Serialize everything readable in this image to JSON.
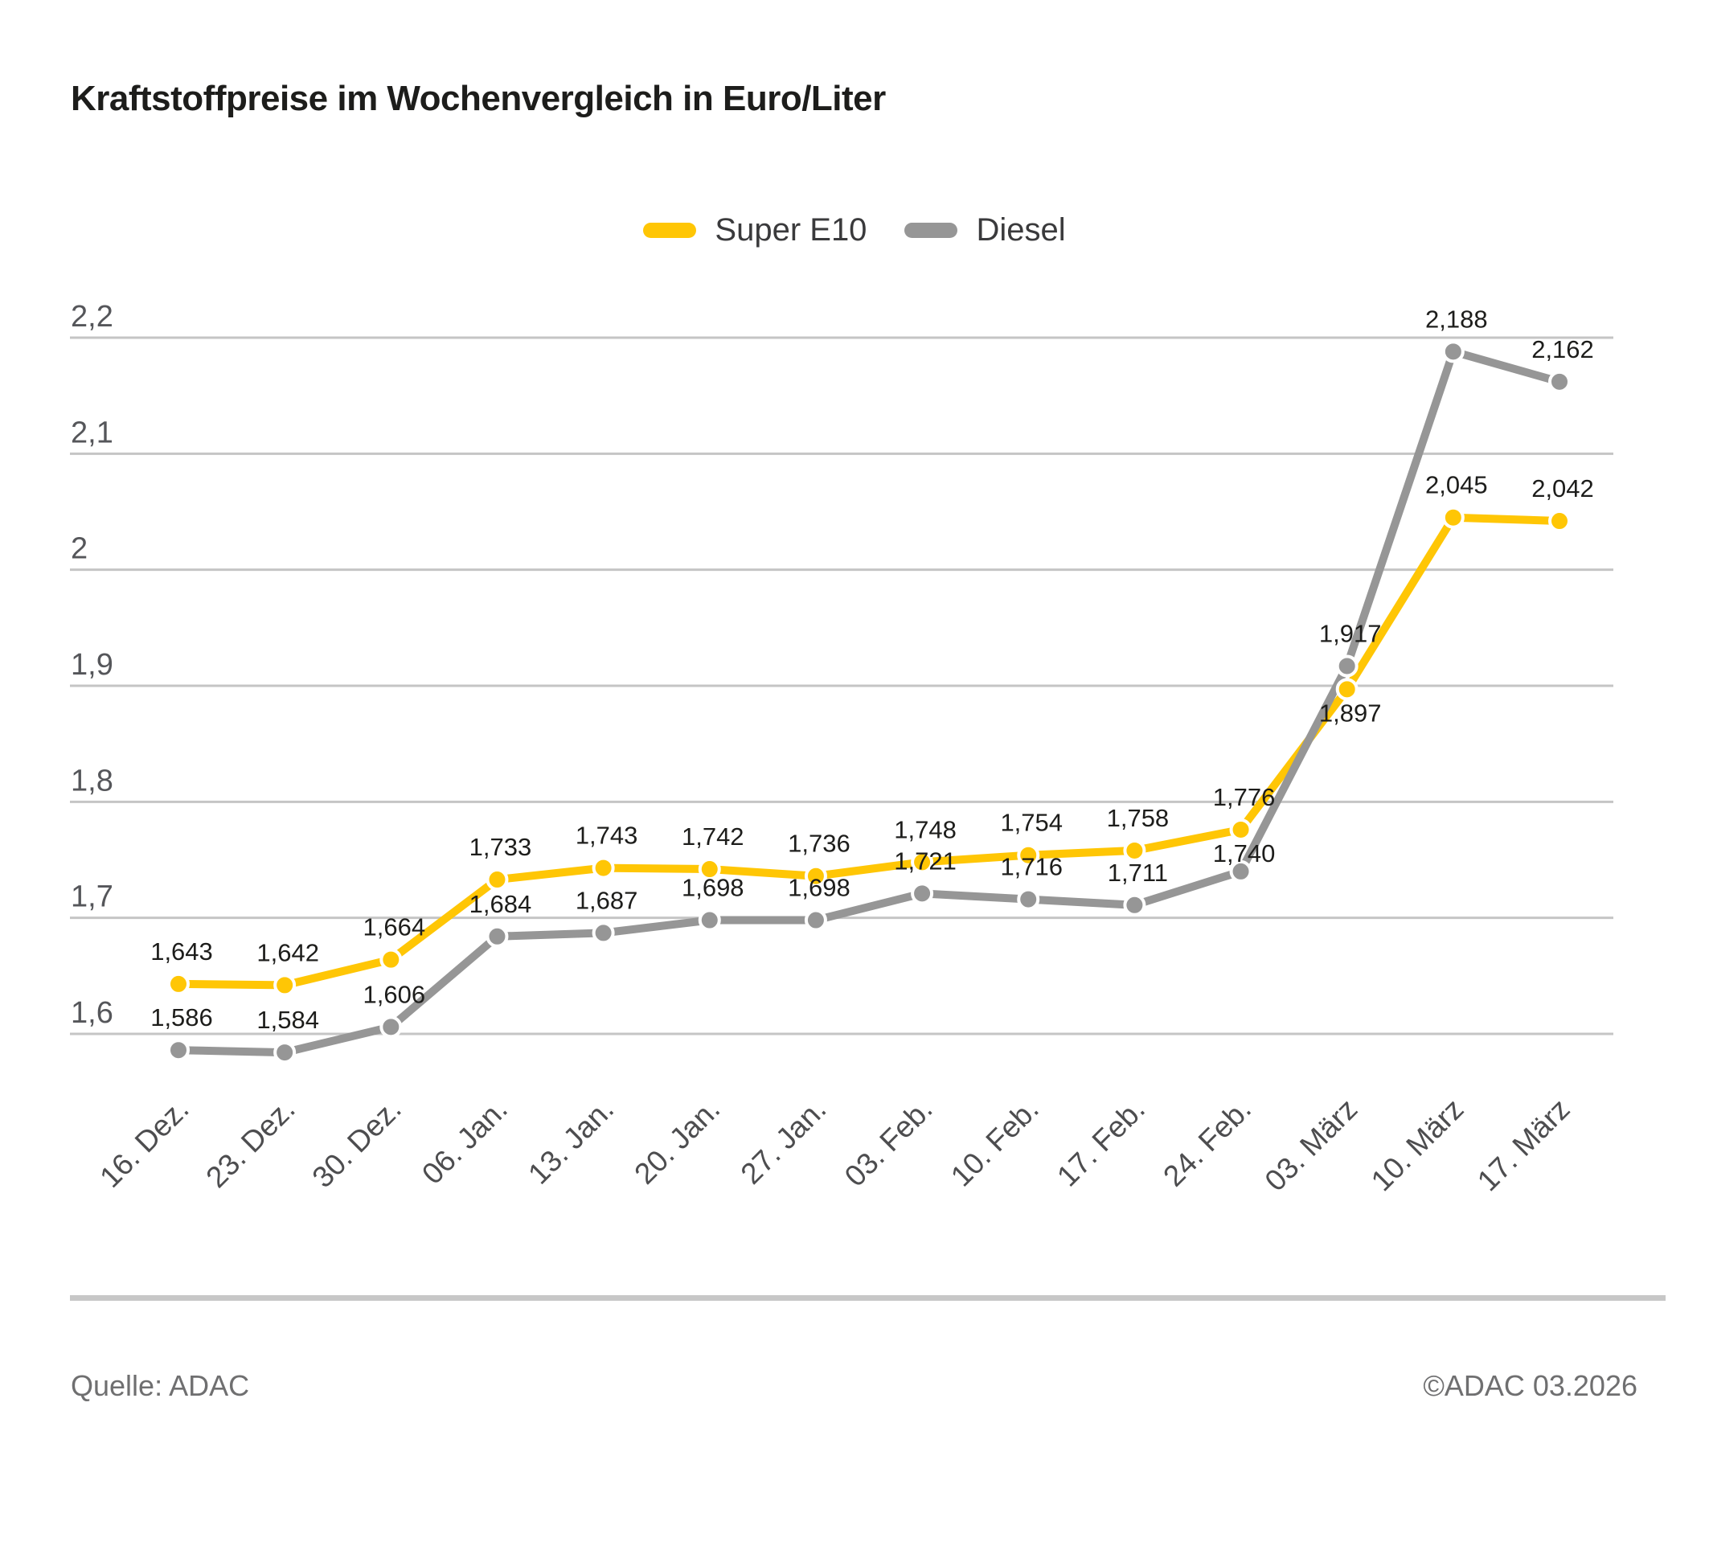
{
  "header": {
    "title": "Kraftstoffpreise im Wochenvergleich in Euro/Liter"
  },
  "chart_data": {
    "type": "line",
    "title": "Kraftstoffpreise im Wochenvergleich in Euro/Liter",
    "unit": "Euro/Liter",
    "grid": true,
    "legend_position": "top",
    "categories": [
      "16. Dez.",
      "23. Dez.",
      "30. Dez.",
      "06. Jan.",
      "13. Jan.",
      "20. Jan.",
      "27. Jan.",
      "03. Feb.",
      "10. Feb.",
      "17. Feb.",
      "24. Feb.",
      "03. März",
      "10. März",
      "17. März"
    ],
    "series": [
      {
        "name": "Super E10",
        "color": "#FFC605",
        "values": [
          1.643,
          1.642,
          1.664,
          1.733,
          1.743,
          1.742,
          1.736,
          1.748,
          1.754,
          1.758,
          1.776,
          1.897,
          2.045,
          2.042
        ],
        "point_labels": [
          "1,643",
          "1,642",
          "1,664",
          "1,733",
          "1,743",
          "1,742",
          "1,736",
          "1,748",
          "1,754",
          "1,758",
          "1,776",
          "1,897",
          "2,045",
          "2,042"
        ],
        "label_below_indices": [
          11
        ],
        "label_tight_indices": []
      },
      {
        "name": "Diesel",
        "color": "#969696",
        "values": [
          1.586,
          1.584,
          1.606,
          1.684,
          1.687,
          1.698,
          1.698,
          1.721,
          1.716,
          1.711,
          1.74,
          1.917,
          2.188,
          2.162
        ],
        "point_labels": [
          "1,586",
          "1,584",
          "1,606",
          "1,684",
          "1,687",
          "1,698",
          "1,698",
          "1,721",
          "1,716",
          "1,711",
          "1,740",
          "1,917",
          "2,188",
          "2,162"
        ],
        "label_below_indices": [],
        "label_tight_indices": [
          10
        ]
      }
    ],
    "y_axis": {
      "range": [
        1.6,
        2.2
      ],
      "tick_values": [
        2.2,
        2.1,
        2.0,
        1.9,
        1.8,
        1.7,
        1.6
      ],
      "tick_labels": [
        "2,2",
        "2,1",
        "2",
        "1,9",
        "1,8",
        "1,7",
        "1,6"
      ]
    }
  },
  "legend": {
    "items": [
      {
        "label": "Super E10",
        "color": "#FFC605"
      },
      {
        "label": "Diesel",
        "color": "#969696"
      }
    ]
  },
  "footer": {
    "source": "Quelle: ADAC",
    "copyright": "©ADAC 03.2026"
  },
  "colors": {
    "grid": "#C5C5C5",
    "divider": "#C7C7C7",
    "y_tick_text": "#55565A",
    "x_tick_text": "#4D4D4F",
    "data_label": "#1D1D1B"
  }
}
